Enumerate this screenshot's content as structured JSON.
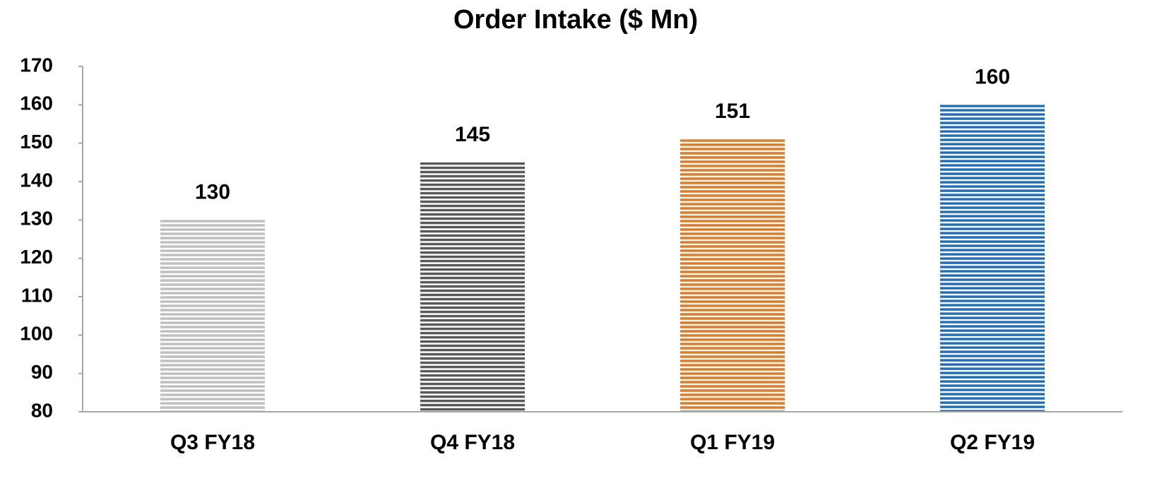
{
  "chart_data": {
    "type": "bar",
    "title": "Order Intake ($ Mn)",
    "categories": [
      "Q3 FY18",
      "Q4 FY18",
      "Q1 FY19",
      "Q2 FY19"
    ],
    "values": [
      130,
      145,
      151,
      160
    ],
    "colors": [
      "#bfbfbf",
      "#595959",
      "#e87722",
      "#1f6fbf"
    ],
    "ylim": [
      80,
      170
    ],
    "yticks": [
      80,
      90,
      100,
      110,
      120,
      130,
      140,
      150,
      160,
      170
    ],
    "grid": false
  }
}
